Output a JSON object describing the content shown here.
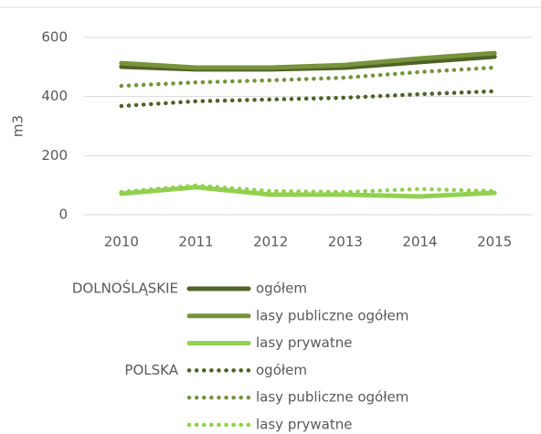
{
  "chart_data": {
    "type": "line",
    "y_label": "m3",
    "categories": [
      "2010",
      "2011",
      "2012",
      "2013",
      "2014",
      "2015"
    ],
    "ylim": [
      0,
      600
    ],
    "yticks": [
      0,
      200,
      400,
      600
    ],
    "grid": true,
    "groups": [
      {
        "name": "DOLNOŚLĄSKIE",
        "style": "solid",
        "series": [
          {
            "name": "ogółem",
            "color": "#4f6228",
            "values": [
              501,
              492,
              492,
              498,
              517,
              535
            ]
          },
          {
            "name": "lasy publiczne ogółem",
            "color": "#77933c",
            "values": [
              513,
              498,
              498,
              507,
              529,
              547
            ]
          },
          {
            "name": "lasy prywatne",
            "color": "#92d050",
            "values": [
              71,
              93,
              68,
              68,
              62,
              74
            ]
          }
        ]
      },
      {
        "name": "POLSKA",
        "style": "dotted",
        "series": [
          {
            "name": "ogółem",
            "color": "#4f6228",
            "values": [
              368,
              384,
              390,
              396,
              408,
              418
            ]
          },
          {
            "name": "lasy publiczne ogółem",
            "color": "#77933c",
            "values": [
              436,
              448,
              455,
              464,
              483,
              498
            ]
          },
          {
            "name": "lasy prywatne",
            "color": "#92d050",
            "values": [
              77,
              99,
              80,
              77,
              87,
              80
            ]
          }
        ]
      }
    ]
  }
}
